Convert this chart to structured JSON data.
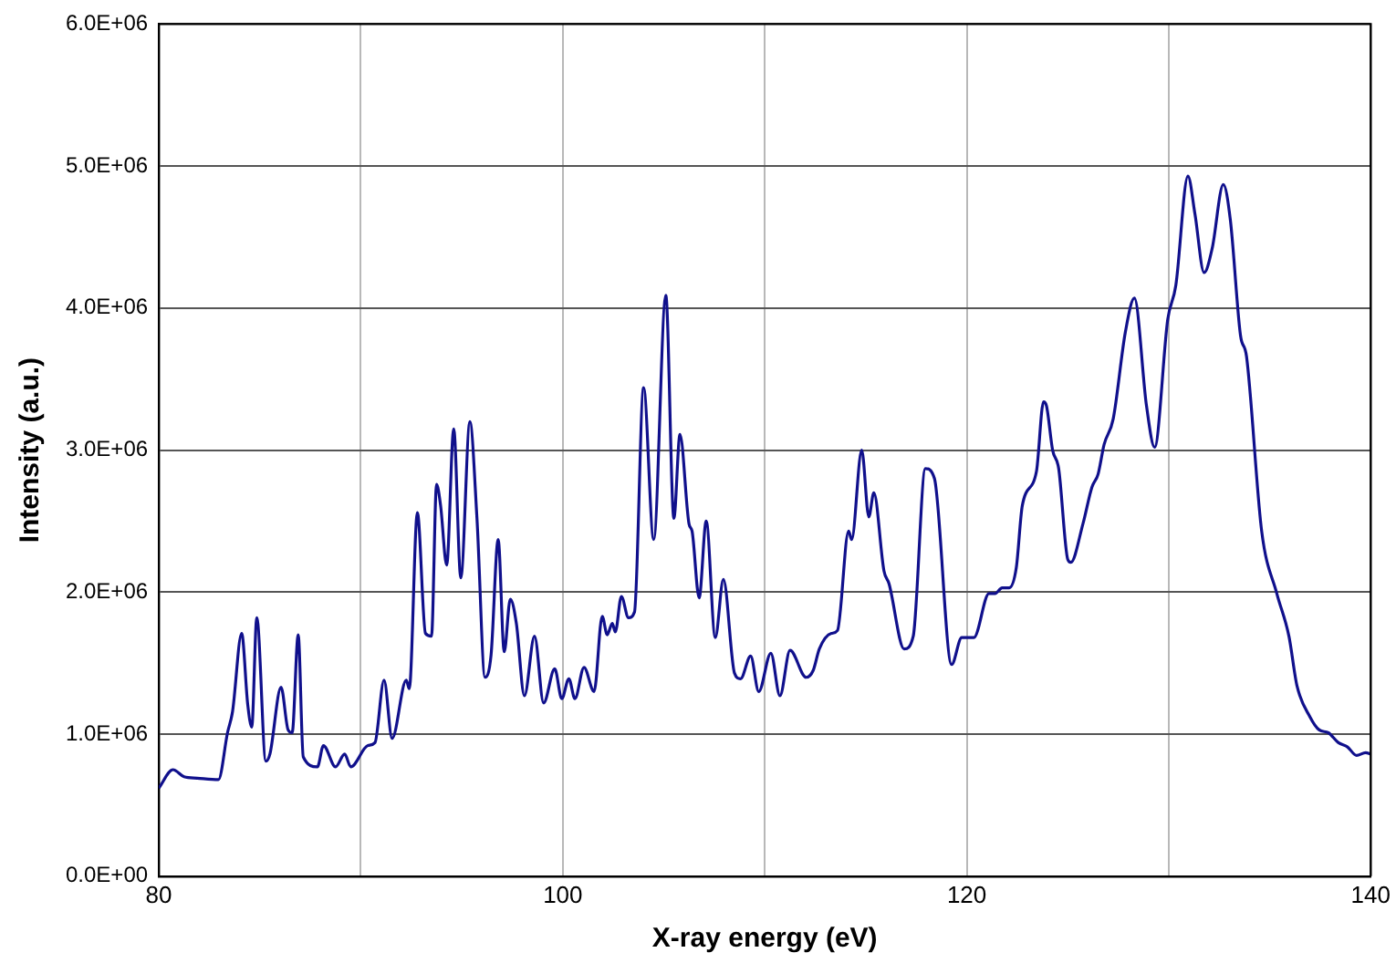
{
  "chart_data": {
    "type": "line",
    "xlabel": "X-ray energy (eV)",
    "ylabel": "Intensity (a.u.)",
    "x": [
      80,
      80.7,
      81.25,
      81.9,
      82.95,
      83.4,
      83.65,
      84.1,
      84.4,
      84.6,
      84.85,
      85.3,
      85.5,
      86.05,
      86.4,
      86.6,
      86.9,
      87.15,
      87.85,
      88.15,
      88.75,
      89.2,
      89.5,
      90.35,
      90.7,
      91.15,
      91.55,
      92.25,
      92.4,
      92.8,
      93.2,
      93.5,
      93.75,
      93.95,
      94.25,
      94.6,
      94.95,
      95.4,
      95.75,
      96.15,
      96.45,
      96.8,
      97.1,
      97.4,
      97.7,
      98.1,
      98.6,
      99.05,
      99.6,
      99.95,
      100.3,
      100.6,
      101.05,
      101.55,
      101.95,
      102.2,
      102.45,
      102.6,
      102.9,
      103.25,
      103.55,
      104.0,
      104.5,
      105.1,
      105.5,
      105.8,
      106.25,
      106.4,
      106.75,
      107.1,
      107.55,
      107.95,
      108.5,
      108.8,
      109.3,
      109.7,
      110.3,
      110.75,
      111.25,
      112.05,
      112.4,
      112.7,
      113.3,
      113.6,
      114.15,
      114.3,
      114.8,
      115.15,
      115.4,
      115.9,
      116.15,
      116.9,
      117.35,
      117.95,
      118.4,
      119.25,
      119.75,
      120.35,
      121.1,
      121.4,
      121.75,
      122.1,
      122.45,
      122.75,
      123.45,
      123.8,
      123.95,
      124.25,
      124.55,
      125.0,
      125.15,
      125.75,
      126.2,
      126.5,
      126.8,
      127.25,
      127.85,
      128.3,
      128.9,
      129.3,
      129.95,
      130.35,
      130.95,
      131.3,
      131.75,
      132.15,
      132.7,
      133.05,
      133.55,
      133.85,
      134.6,
      135.35,
      135.95,
      136.35,
      137.0,
      137.45,
      137.9,
      138.4,
      138.85,
      139.3,
      139.75,
      140
    ],
    "series": [
      {
        "color": "#10108c",
        "values": [
          620000,
          750000,
          700000,
          690000,
          680000,
          1010000,
          1160000,
          1710000,
          1210000,
          1050000,
          1820000,
          810000,
          860000,
          1330000,
          1030000,
          1010000,
          1700000,
          840000,
          770000,
          920000,
          770000,
          860000,
          770000,
          920000,
          940000,
          1380000,
          970000,
          1380000,
          1320000,
          2560000,
          1710000,
          1690000,
          2760000,
          2610000,
          2190000,
          3150000,
          2100000,
          3200000,
          2520000,
          1400000,
          1560000,
          2370000,
          1580000,
          1950000,
          1780000,
          1270000,
          1690000,
          1220000,
          1460000,
          1250000,
          1390000,
          1250000,
          1470000,
          1300000,
          1830000,
          1700000,
          1780000,
          1720000,
          1970000,
          1820000,
          1860000,
          3440000,
          2370000,
          4090000,
          2520000,
          3110000,
          2480000,
          2430000,
          1960000,
          2500000,
          1680000,
          2090000,
          1430000,
          1390000,
          1550000,
          1300000,
          1570000,
          1270000,
          1590000,
          1400000,
          1450000,
          1600000,
          1710000,
          1730000,
          2430000,
          2370000,
          3000000,
          2530000,
          2700000,
          2150000,
          2060000,
          1600000,
          1690000,
          2870000,
          2800000,
          1490000,
          1680000,
          1680000,
          1990000,
          1990000,
          2030000,
          2030000,
          2170000,
          2610000,
          2850000,
          3340000,
          3310000,
          3000000,
          2870000,
          2230000,
          2210000,
          2480000,
          2740000,
          2830000,
          3040000,
          3220000,
          3830000,
          4070000,
          3310000,
          3020000,
          3920000,
          4160000,
          4930000,
          4660000,
          4250000,
          4420000,
          4870000,
          4620000,
          3810000,
          3660000,
          2430000,
          1990000,
          1690000,
          1340000,
          1120000,
          1030000,
          1010000,
          940000,
          910000,
          850000,
          870000,
          860000
        ]
      }
    ],
    "xlim": [
      80,
      140
    ],
    "xticks": [
      80,
      {
        "value": 90,
        "label": null
      },
      100,
      {
        "value": 110,
        "label": null
      },
      120,
      {
        "value": 130,
        "label": null
      },
      140
    ],
    "ylim": [
      0,
      6000000
    ],
    "yticks": [
      {
        "value": 0,
        "label": "0.0E+00"
      },
      {
        "value": 1000000,
        "label": "1.0E+06"
      },
      {
        "value": 2000000,
        "label": "2.0E+06"
      },
      {
        "value": 3000000,
        "label": "3.0E+06"
      },
      {
        "value": 4000000,
        "label": "4.0E+06"
      },
      {
        "value": 5000000,
        "label": "5.0E+06"
      },
      {
        "value": 6000000,
        "label": "6.0E+06"
      }
    ],
    "grid": true,
    "marker": "none",
    "line_style": "solid"
  }
}
